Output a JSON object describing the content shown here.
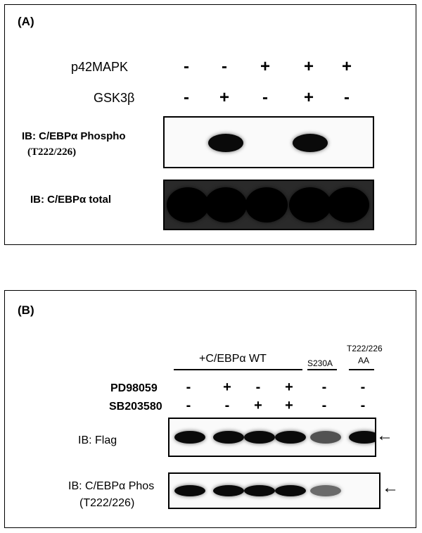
{
  "panel_a": {
    "label": "(A)",
    "rows": [
      {
        "label": "p42MAPK",
        "marks": [
          "-",
          "-",
          "+",
          "+",
          "+"
        ]
      },
      {
        "label": "GSK3β",
        "marks": [
          "-",
          "+",
          "-",
          "+",
          "-"
        ]
      }
    ],
    "blot1": {
      "label_main": "IB: C/EBPα Phospho",
      "label_sub": "(T222/226)"
    },
    "blot2": {
      "label": "IB: C/EBPα total"
    },
    "phospho_signal": [
      0,
      1,
      0,
      1,
      0
    ],
    "total_signal": [
      1,
      1,
      1,
      1,
      1
    ]
  },
  "panel_b": {
    "label": "(B)",
    "group_wt": "+C/EBPα WT",
    "group_s230a": "S230A",
    "group_t222": "T222/226",
    "group_t222_sub": "AA",
    "rows": [
      {
        "label": "PD98059",
        "marks": [
          "-",
          "+",
          "-",
          "+",
          "-",
          "-"
        ]
      },
      {
        "label": "SB203580",
        "marks": [
          "-",
          "-",
          "+",
          "+",
          "-",
          "-"
        ]
      }
    ],
    "blot1": {
      "label": "IB: Flag",
      "arrow": "←"
    },
    "blot2": {
      "label_main": "IB: C/EBPα Phos",
      "label_sub": "(T222/226)",
      "arrow": "←"
    },
    "flag_signal": [
      1,
      1,
      1,
      1,
      0.7,
      1
    ],
    "phos_signal": [
      1,
      1,
      1,
      1,
      0.6,
      0
    ]
  }
}
